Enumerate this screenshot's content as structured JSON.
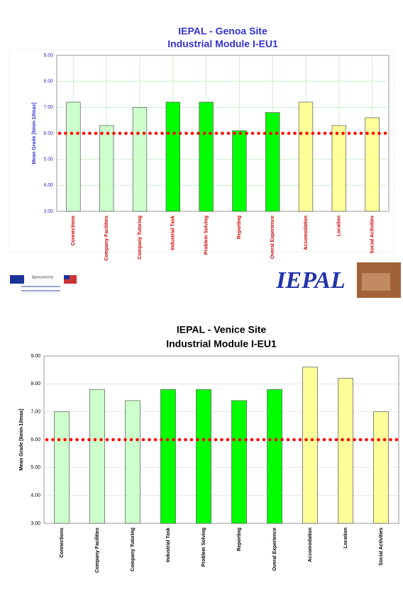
{
  "chart_data": [
    {
      "type": "bar",
      "title": "IEPAL - Genoa Site",
      "subtitle": "Industrial Module I-EU1",
      "ylabel": "Mean Grade [6min-10max]",
      "categories": [
        "Connections",
        "Company Facilities",
        "Company Tutoring",
        "Industrial Task",
        "Problem Solving",
        "Reporting",
        "Overal Experience",
        "Accomodation",
        "Location",
        "Social Activities"
      ],
      "values": [
        7.2,
        6.3,
        7.0,
        7.2,
        7.2,
        6.1,
        6.8,
        7.2,
        6.3,
        6.6
      ],
      "colors": [
        "#ccffcc",
        "#ccffcc",
        "#ccffcc",
        "#00ff00",
        "#00ff00",
        "#00ff00",
        "#00ff00",
        "#ffff99",
        "#ffff99",
        "#ffff99"
      ],
      "ylim": [
        3,
        9
      ],
      "yticks": [
        {
          "value": 3,
          "label": "3.00"
        },
        {
          "value": 4,
          "label": "4.00"
        },
        {
          "value": 5,
          "label": "5.00"
        },
        {
          "value": 6,
          "label": "6.00"
        },
        {
          "value": 7,
          "label": "7.00"
        },
        {
          "value": 8,
          "label": "8.00"
        },
        {
          "value": 9,
          "label": "9.00"
        }
      ],
      "reference_line": {
        "value": 6,
        "color": "#ff0000"
      },
      "grid": true
    },
    {
      "type": "bar",
      "title": "IEPAL - Venice Site",
      "subtitle": "Industrial Module I-EU1",
      "ylabel": "Mean Grade [6min-10max]",
      "categories": [
        "Connections",
        "Company Facilities",
        "Company Tutoring",
        "Industrial Task",
        "Problem Solving",
        "Reporting",
        "Overal Experience",
        "Accomodation",
        "Location",
        "Social Activities"
      ],
      "values": [
        7.0,
        7.8,
        7.4,
        7.8,
        7.8,
        7.4,
        7.8,
        8.6,
        8.2,
        7.0
      ],
      "colors": [
        "#ccffcc",
        "#ccffcc",
        "#ccffcc",
        "#00ff00",
        "#00ff00",
        "#00ff00",
        "#00ff00",
        "#ffff99",
        "#ffff99",
        "#ffff99"
      ],
      "ylim": [
        3,
        9
      ],
      "yticks": [
        {
          "value": 3,
          "label": "3.00"
        },
        {
          "value": 4,
          "label": "4.00"
        },
        {
          "value": 5,
          "label": "5.00"
        },
        {
          "value": 6,
          "label": "6.00"
        },
        {
          "value": 7,
          "label": "7.00"
        },
        {
          "value": 8,
          "label": "8.00"
        },
        {
          "value": 9,
          "label": "9.00"
        }
      ],
      "reference_line": {
        "value": 6,
        "color": "#ff0000"
      },
      "grid": true
    }
  ],
  "footer": {
    "sponsor": "Sponsored by",
    "logo": "IEPAL"
  }
}
